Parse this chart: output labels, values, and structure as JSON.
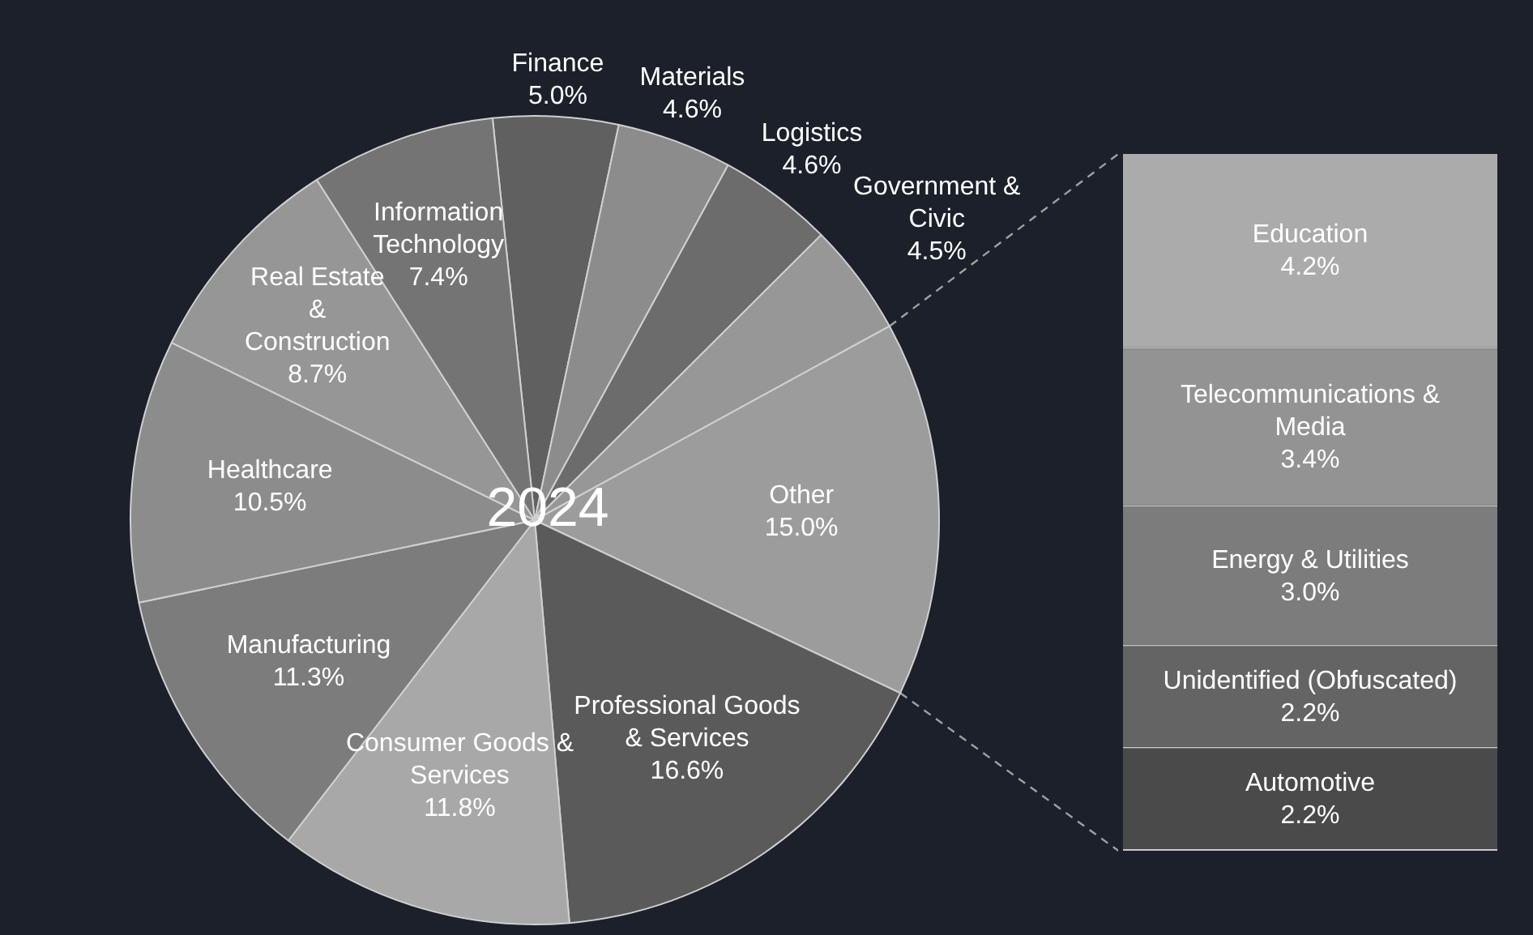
{
  "chart_data": [
    {
      "type": "pie",
      "title": "2024",
      "categories": [
        "Finance",
        "Materials",
        "Logistics",
        "Government & Civic",
        "Other",
        "Professional Goods & Services",
        "Consumer Goods & Services",
        "Manufacturing",
        "Healthcare",
        "Real Estate & Construction",
        "Information Technology"
      ],
      "values": [
        5.0,
        4.6,
        4.6,
        4.5,
        15.0,
        16.6,
        11.8,
        11.3,
        10.5,
        8.7,
        7.4
      ],
      "value_labels": [
        "5.0%",
        "4.6%",
        "4.6%",
        "4.5%",
        "15.0%",
        "16.6%",
        "11.8%",
        "11.3%",
        "10.5%",
        "8.7%",
        "7.4%"
      ],
      "colors": [
        "#606060",
        "#8c8c8c",
        "#6c6c6c",
        "#979797",
        "#9c9c9c",
        "#5a5a5a",
        "#a8a8a8",
        "#7c7c7c",
        "#8c8c8c",
        "#969696",
        "#747474"
      ],
      "legend": false
    },
    {
      "type": "bar",
      "stacked": true,
      "categories": [
        null
      ],
      "legend": false,
      "series": [
        {
          "name": "Automotive",
          "color": "#4a4a4a",
          "values": [
            2.2
          ],
          "value_labels": [
            "2.2%"
          ]
        },
        {
          "name": "Unidentified (Obfuscated)",
          "color": "#646464",
          "values": [
            2.2
          ],
          "value_labels": [
            "2.2%"
          ]
        },
        {
          "name": "Energy & Utilities",
          "color": "#7c7c7c",
          "values": [
            3.0
          ],
          "value_labels": [
            "3.0%"
          ]
        },
        {
          "name": "Telecommunications & Media",
          "color": "#939393",
          "values": [
            3.4
          ],
          "value_labels": [
            "3.4%"
          ]
        },
        {
          "name": "Education",
          "color": "#ababab",
          "values": [
            4.2
          ],
          "value_labels": [
            "4.2%"
          ]
        }
      ]
    }
  ]
}
